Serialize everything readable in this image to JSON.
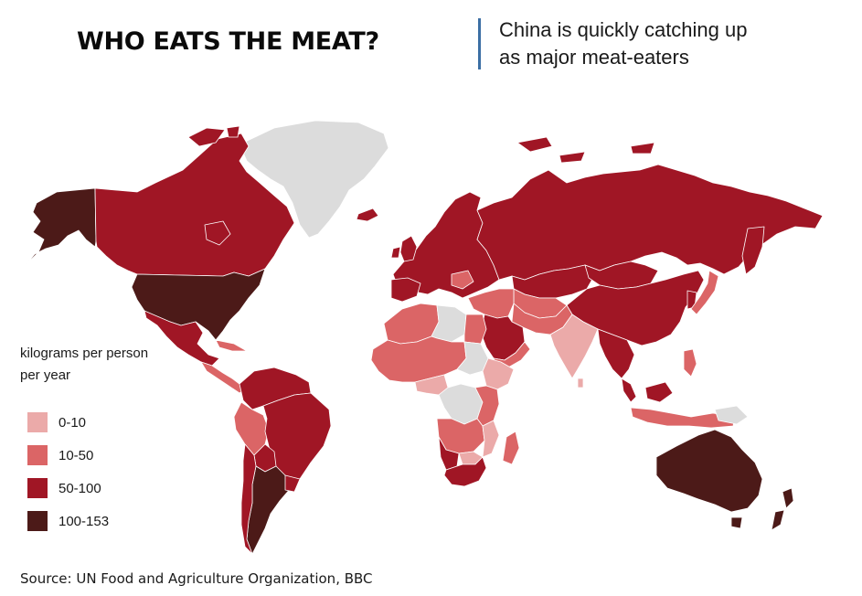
{
  "header": {
    "title": "WHO EATS THE MEAT?",
    "subtitle_line1": "China is quickly catching up",
    "subtitle_line2": "as major meat-eaters"
  },
  "legend": {
    "title_line1": "kilograms per person",
    "title_line2": "per year",
    "items": [
      {
        "label": "0-10",
        "color": "#ebaaa9"
      },
      {
        "label": "10-50",
        "color": "#db6566"
      },
      {
        "label": "50-100",
        "color": "#a01625"
      },
      {
        "label": "100-153",
        "color": "#4c1a18"
      }
    ]
  },
  "colors": {
    "no_data": "#dcdcdc",
    "border": "#ffffff",
    "accent_divider": "#3c6fa4"
  },
  "source": "Source: UN Food and Agriculture Organization, BBC"
}
